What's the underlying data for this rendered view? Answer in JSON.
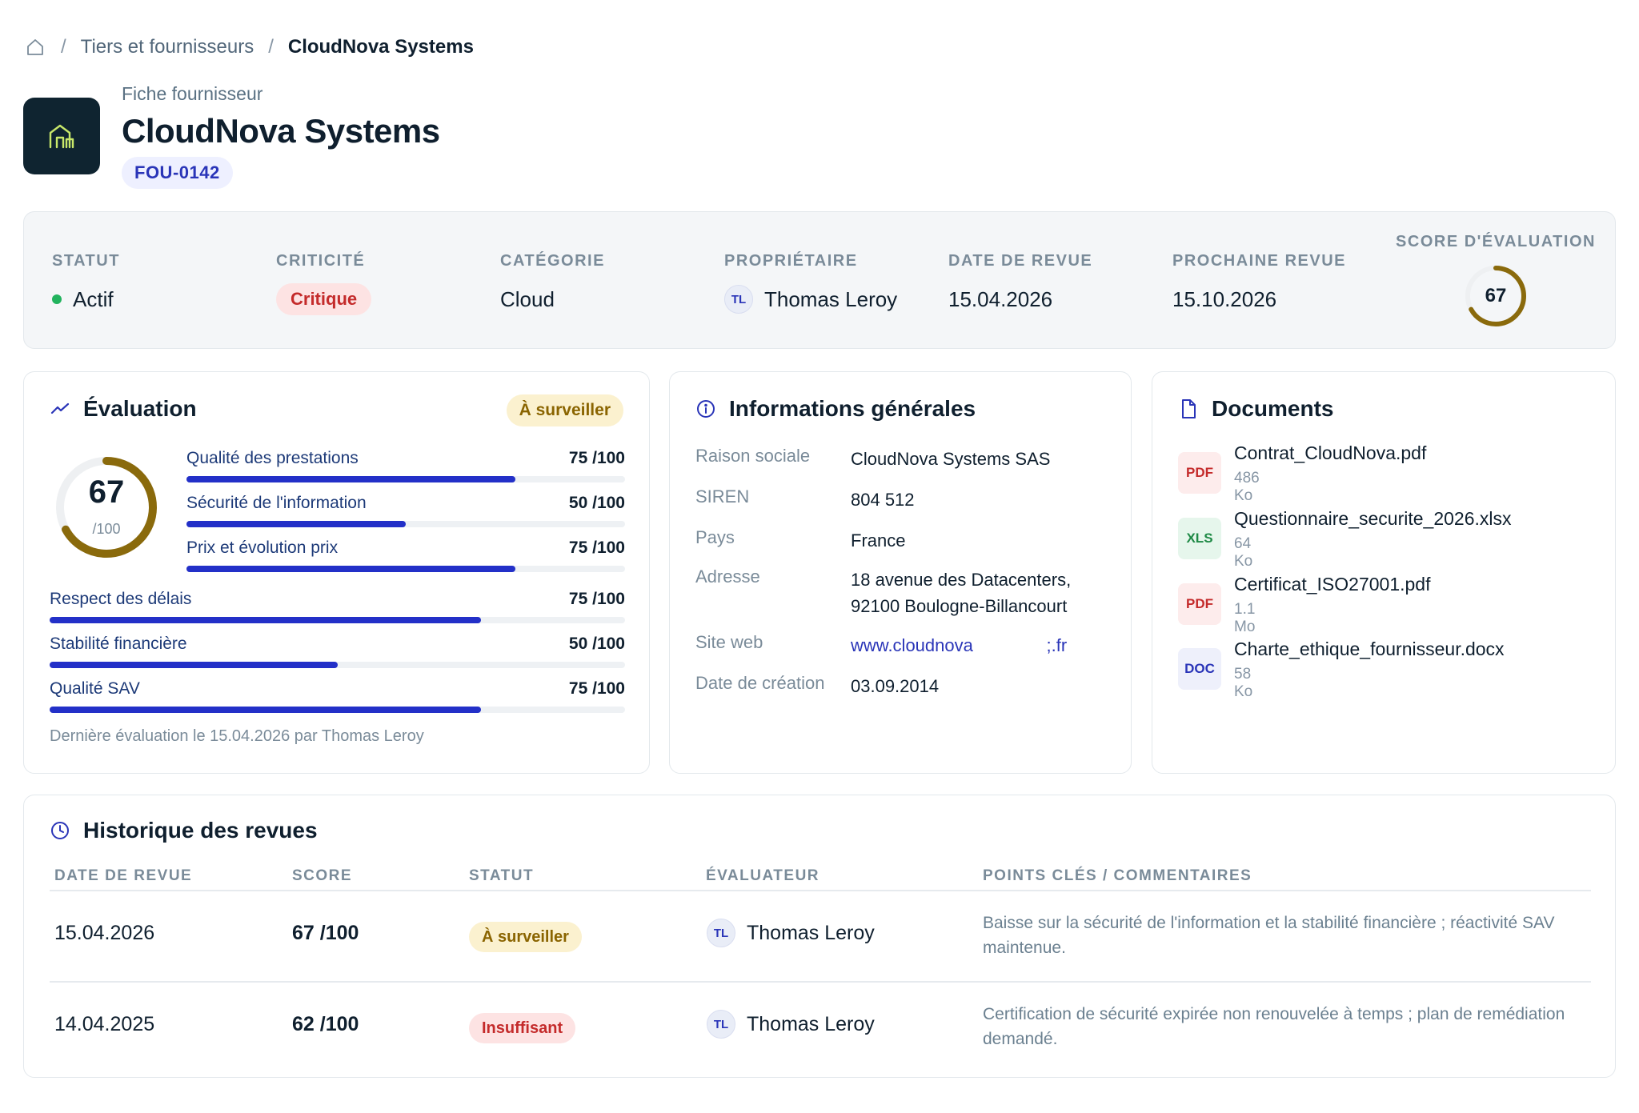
{
  "breadcrumb": {
    "home_icon": "home-icon",
    "separator": "/",
    "parent": "Tiers et fournisseurs",
    "current": "CloudNova Systems"
  },
  "header": {
    "eyebrow": "Fiche fournisseur",
    "title": "CloudNova Systems",
    "code": "FOU-0142",
    "logo_icon": "building-icon"
  },
  "summary": {
    "status": {
      "label": "STATUT",
      "value": "Actif",
      "color": "#22b35e"
    },
    "criticality": {
      "label": "CRITICITÉ",
      "value": "Critique"
    },
    "category": {
      "label": "CATÉGORIE",
      "value": "Cloud"
    },
    "owner": {
      "label": "PROPRIÉTAIRE",
      "initials": "TL",
      "value": "Thomas Leroy"
    },
    "review_date": {
      "label": "DATE DE REVUE",
      "value": "15.04.2026"
    },
    "next_review": {
      "label": "PROCHAINE REVUE",
      "value": "15.10.2026"
    },
    "score": {
      "label": "SCORE D'ÉVALUATION",
      "value": "67",
      "fraction": 0.67
    }
  },
  "evaluation": {
    "title": "Évaluation",
    "badge": "À surveiller",
    "score": "67",
    "score_denominator": "/100",
    "score_fraction": 0.67,
    "criteria": [
      {
        "label": "Qualité des prestations",
        "value": "75 /100",
        "fraction": 0.75
      },
      {
        "label": "Sécurité de l'information",
        "value": "50 /100",
        "fraction": 0.5
      },
      {
        "label": "Prix et évolution prix",
        "value": "75 /100",
        "fraction": 0.75
      },
      {
        "label": "Respect des délais",
        "value": "75 /100",
        "fraction": 0.75
      },
      {
        "label": "Stabilité financière",
        "value": "50 /100",
        "fraction": 0.5
      },
      {
        "label": "Qualité SAV",
        "value": "75 /100",
        "fraction": 0.75
      }
    ],
    "footer": "Dernière évaluation le 15.04.2026 par Thomas Leroy"
  },
  "info": {
    "title": "Informations générales",
    "rows": [
      {
        "key": "Raison sociale",
        "value": "CloudNova Systems SAS"
      },
      {
        "key": "SIREN",
        "value": "804 512"
      },
      {
        "key": "Pays",
        "value": "France"
      },
      {
        "key": "Adresse",
        "value": "18 avenue des Datacenters, 92100 Boulogne-Billancourt"
      },
      {
        "key": "Site web",
        "value": "www.cloudnova               ;.fr"
      },
      {
        "key": "Date de création",
        "value": "03.09.2014"
      }
    ]
  },
  "documents": {
    "title": "Documents",
    "items": [
      {
        "type": "PDF",
        "name": "Contrat_CloudNova.pdf",
        "size": "486 Ko"
      },
      {
        "type": "XLS",
        "name": "Questionnaire_securite_2026.xlsx",
        "size": "64 Ko"
      },
      {
        "type": "PDF",
        "name": "Certificat_ISO27001.pdf",
        "size": "1.1 Mo"
      },
      {
        "type": "DOC",
        "name": "Charte_ethique_fournisseur.docx",
        "size": "58 Ko"
      }
    ]
  },
  "history": {
    "title": "Historique des revues",
    "columns": [
      "DATE DE REVUE",
      "SCORE",
      "STATUT",
      "ÉVALUATEUR",
      "POINTS CLÉS / COMMENTAIRES"
    ],
    "rows": [
      {
        "date": "15.04.2026",
        "score": "67 /100",
        "status": "À surveiller",
        "initials": "TL",
        "reviewer": "Thomas Leroy",
        "comment": "Baisse sur la sécurité de l'information et la stabilité financière ; réactivité SAV maintenue."
      },
      {
        "date": "14.04.2025",
        "score": "62 /100",
        "status": "Insuffisant",
        "initials": "TL",
        "reviewer": "Thomas Leroy",
        "comment": "Certification de sécurité expirée non renouvelée à temps ; plan de remédiation demandé."
      }
    ]
  },
  "colors": {
    "accent": "#2330c8",
    "score_ring": "#8a6a0c",
    "logo_bg": "#0f2430",
    "logo_icon": "#c8e86a"
  }
}
